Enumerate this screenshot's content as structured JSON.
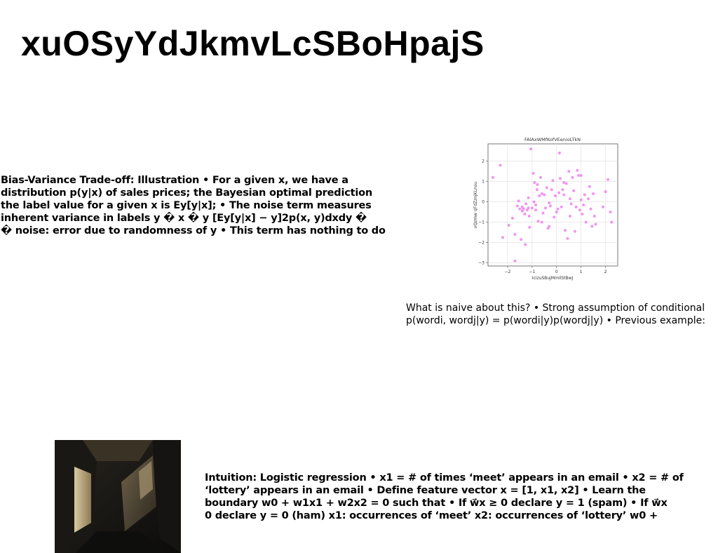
{
  "slide": {
    "title": "xuOSyYdJkmvLcSBoHpajS",
    "left_text": [
      "Bias-Variance Trade-off: Illustration • For a given x, we have a",
      "distribution p(y|x) of sales prices; the Bayesian optimal prediction",
      "the label value for a given x is Ey[y|x]; • The noise term measures",
      "inherent variance in labels y � x � y [Ey[y|x] − y]2p(x, y)dxdy �",
      "� noise: error due to randomness of y • This term has nothing to do"
    ],
    "right_text": [
      "What is naive about this? • Strong assumption of conditional",
      "p(wordi, wordj|y) = p(wordi|y)p(wordj|y) • Previous example:"
    ],
    "bottom_text": [
      "Intuition: Logistic regression • x1 = # of times ‘meet’ appears in an email • x2 = # of",
      "‘lottery’ appears in an email • Define feature vector x = [1, x1, x2] • Learn the",
      "boundary w0 + w1x1 + w2x2 = 0 such that • If w⃗x ≥ 0 declare y = 1 (spam) • If w⃗x",
      "0 declare y = 0 (ham) x1: occurrences of ‘meet’ x2: occurrences of ‘lottery’ w0 +"
    ],
    "photo_icon": "dark-room-photo"
  },
  "chart_data": {
    "type": "scatter",
    "title": "FAlAxWMfKofVEenioLTkN",
    "xlabel": "IcizuSBujMmIlStBwJ",
    "ylabel": "vQzmw qFdZznjKLnou",
    "xlim": [
      -2.8,
      2.5
    ],
    "ylim": [
      -3.15,
      2.85
    ],
    "xticks": [
      -2,
      -1,
      0,
      1,
      2
    ],
    "yticks": [
      -3,
      -2,
      -1,
      0,
      1,
      2
    ],
    "grid": true,
    "marker_color": "#ee82ee",
    "points": [
      [
        -2.6,
        1.2
      ],
      [
        -2.3,
        1.8
      ],
      [
        -2.2,
        -1.75
      ],
      [
        -1.95,
        -1.15
      ],
      [
        -1.8,
        -0.8
      ],
      [
        -1.7,
        -1.6
      ],
      [
        -1.6,
        -0.2
      ],
      [
        -1.55,
        0.05
      ],
      [
        -1.5,
        -0.35
      ],
      [
        -1.45,
        -1.85
      ],
      [
        -1.4,
        -0.25
      ],
      [
        -1.4,
        -0.45
      ],
      [
        -1.35,
        -0.35
      ],
      [
        -1.3,
        -0.6
      ],
      [
        -1.28,
        -2.1
      ],
      [
        -1.25,
        -0.1
      ],
      [
        -1.2,
        -0.4
      ],
      [
        -1.15,
        -0.3
      ],
      [
        -1.12,
        -0.7
      ],
      [
        -1.1,
        -1.25
      ],
      [
        -1.05,
        2.6
      ],
      [
        -1.0,
        -0.3
      ],
      [
        -0.95,
        1.4
      ],
      [
        -0.92,
        0.0
      ],
      [
        -0.9,
        0.95
      ],
      [
        -0.85,
        -0.4
      ],
      [
        -0.8,
        0.6
      ],
      [
        -0.78,
        0.85
      ],
      [
        -0.75,
        -0.95
      ],
      [
        -0.7,
        0.3
      ],
      [
        -0.65,
        1.2
      ],
      [
        -0.6,
        0.4
      ],
      [
        -0.55,
        -0.55
      ],
      [
        -0.5,
        0.35
      ],
      [
        -0.45,
        -0.3
      ],
      [
        -0.4,
        0.7
      ],
      [
        -0.35,
        -1.3
      ],
      [
        -0.3,
        -1.2
      ],
      [
        -0.25,
        -0.2
      ],
      [
        -0.2,
        0.6
      ],
      [
        -0.15,
        1.05
      ],
      [
        -0.1,
        -0.75
      ],
      [
        -0.05,
        0.3
      ],
      [
        0.0,
        -0.5
      ],
      [
        0.05,
        -0.35
      ],
      [
        0.1,
        0.45
      ],
      [
        0.12,
        2.4
      ],
      [
        0.15,
        1.15
      ],
      [
        0.2,
        -0.25
      ],
      [
        0.25,
        0.6
      ],
      [
        0.3,
        0.35
      ],
      [
        0.35,
        -1.4
      ],
      [
        0.4,
        0.9
      ],
      [
        0.45,
        -1.8
      ],
      [
        0.5,
        1.5
      ],
      [
        0.55,
        -0.7
      ],
      [
        0.6,
        -0.1
      ],
      [
        0.65,
        1.2
      ],
      [
        0.7,
        0.55
      ],
      [
        0.75,
        -1.45
      ],
      [
        0.8,
        -0.25
      ],
      [
        0.85,
        1.55
      ],
      [
        0.9,
        1.3
      ],
      [
        0.95,
        -0.4
      ],
      [
        1.0,
        0.1
      ],
      [
        1.05,
        -0.6
      ],
      [
        1.1,
        -0.15
      ],
      [
        1.15,
        0.35
      ],
      [
        1.2,
        -1.0
      ],
      [
        1.3,
        0.15
      ],
      [
        1.35,
        0.75
      ],
      [
        1.4,
        -0.35
      ],
      [
        1.45,
        -1.2
      ],
      [
        1.5,
        0.4
      ],
      [
        1.55,
        -0.7
      ],
      [
        1.6,
        -1.1
      ],
      [
        1.9,
        -0.25
      ],
      [
        2.0,
        0.5
      ],
      [
        2.1,
        1.1
      ],
      [
        2.2,
        -0.5
      ],
      [
        2.25,
        -1.0
      ],
      [
        -0.3,
        -0.05
      ],
      [
        0.3,
        0.95
      ],
      [
        -1.7,
        -2.9
      ],
      [
        -0.6,
        -1.0
      ],
      [
        0.55,
        0.15
      ],
      [
        -1.15,
        0.2
      ],
      [
        1.0,
        1.3
      ],
      [
        -0.85,
        -0.15
      ]
    ]
  }
}
